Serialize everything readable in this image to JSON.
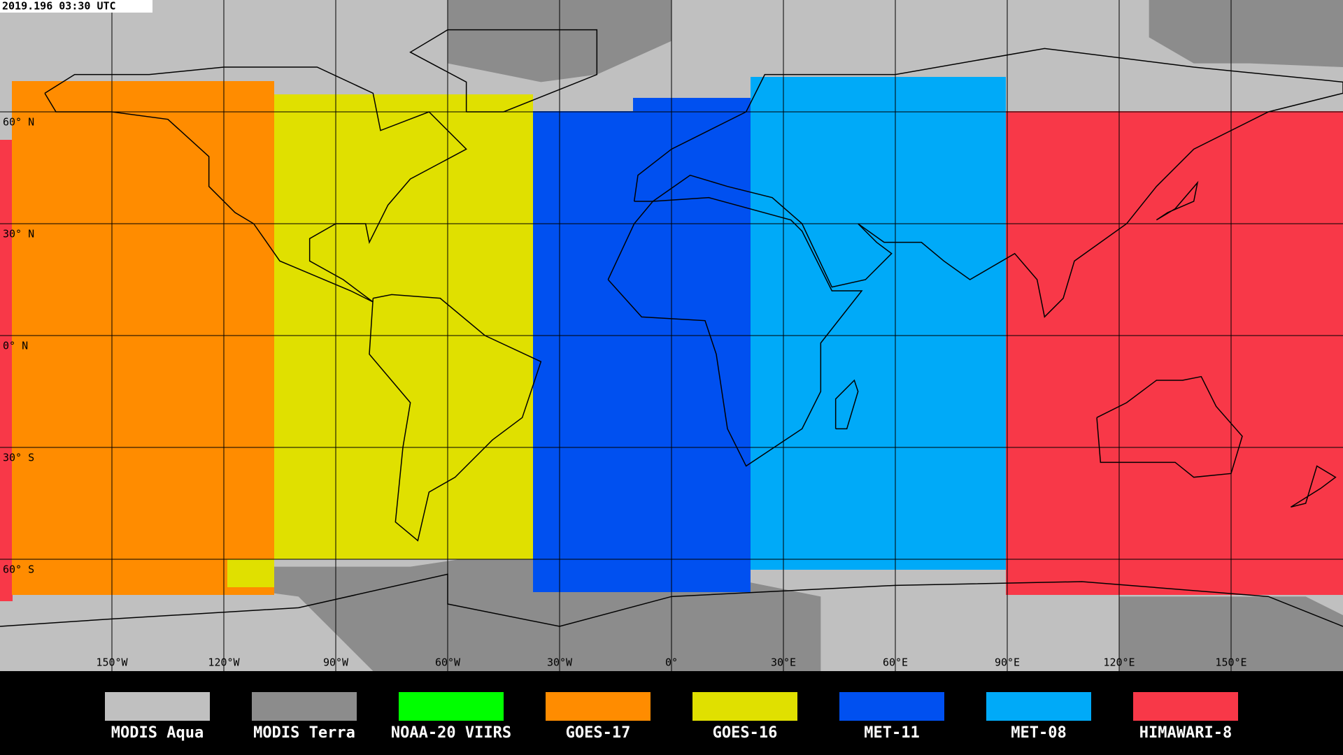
{
  "timestamp": "2019.196 03:30 UTC",
  "latitude_labels": [
    "60° N",
    "30° N",
    "0° N",
    "30° S",
    "60° S"
  ],
  "longitude_labels": [
    "150°W",
    "120°W",
    "90°W",
    "60°W",
    "30°W",
    "0°",
    "30°E",
    "60°E",
    "90°E",
    "120°E",
    "150°E"
  ],
  "legend": [
    {
      "label": "MODIS Aqua",
      "color": "#c0c0c0"
    },
    {
      "label": "MODIS Terra",
      "color": "#8c8c8c"
    },
    {
      "label": "NOAA-20 VIIRS",
      "color": "#00ff00"
    },
    {
      "label": "GOES-17",
      "color": "#ff8c00"
    },
    {
      "label": "GOES-16",
      "color": "#e0e000"
    },
    {
      "label": "MET-11",
      "color": "#0050f0"
    },
    {
      "label": "MET-08",
      "color": "#00aaf8"
    },
    {
      "label": "HIMAWARI-8",
      "color": "#f83848"
    }
  ]
}
